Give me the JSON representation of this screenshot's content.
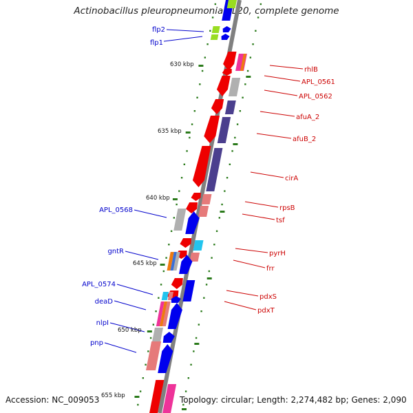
{
  "title": "Actinobacillus pleuropneumoniae L20, complete genome",
  "accession_text": "Accession: NC_009053",
  "summary_text": "Topology: circular; Length: 2,274,482 bp; Genes: 2,090",
  "colors": {
    "backbone": "#808080",
    "tick": "#2a7a1a",
    "left_label": "#0000cc",
    "right_label": "#cc0000",
    "blue_gene": "#0000ee",
    "red_gene": "#ee0000",
    "purple_gene": "#4b3f8e",
    "grey_gene": "#b0b0b0",
    "pink_gene": "#e67a7a",
    "cyan_gene": "#22c4ee",
    "green_gene": "#99dd22",
    "orange_gene": "#ee7a11",
    "magenta_gene": "#ee3399"
  },
  "scale_labels": [
    "630 kbp",
    "635 kbp",
    "640 kbp",
    "645 kbp",
    "650 kbp",
    "655 kbp"
  ],
  "left_gene_labels": [
    "flp2",
    "flp1",
    "APL_0568",
    "gntR",
    "APL_0574",
    "deaD",
    "nlpI",
    "pnp"
  ],
  "right_gene_labels": [
    "rhlB",
    "APL_0561",
    "APL_0562",
    "afuA_2",
    "afuB_2",
    "cirA",
    "rpsB",
    "tsf",
    "pyrH",
    "frr",
    "pdxS",
    "pdxT"
  ]
}
